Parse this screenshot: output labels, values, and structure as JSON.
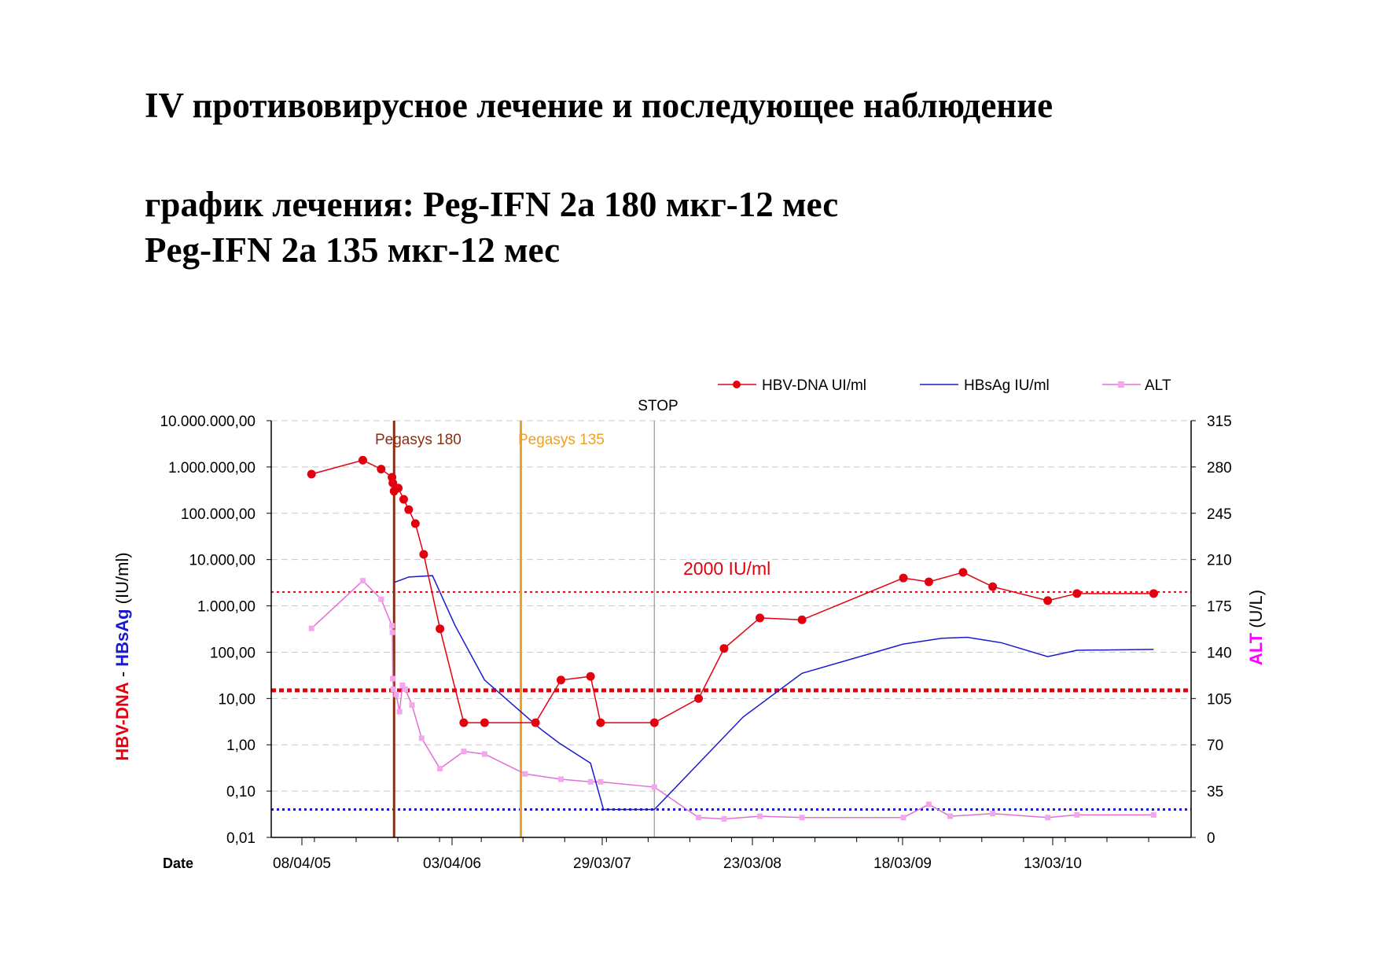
{
  "slide": {
    "title": "IV противовирусное лечение и последующее наблюдение",
    "subtitle_line1": "график лечения: Peg-IFN 2a 180 мкг-12 мес",
    "subtitle_line2": "Peg-IFN 2a 135 мкг-12 мес"
  },
  "chart_data": {
    "type": "line",
    "x_axis_label": "Date",
    "x_ticks": [
      "08/04/05",
      "03/04/06",
      "29/03/07",
      "23/03/08",
      "18/03/09",
      "13/03/10"
    ],
    "y_left": {
      "label_parts": [
        "HBV-DNA",
        " - ",
        "HBsAg",
        " (IU/ml)"
      ],
      "scale": "log",
      "range": [
        0.01,
        10000000
      ],
      "tick_labels": [
        "0,01",
        "0,10",
        "1,00",
        "10,00",
        "100,00",
        "1.000,00",
        "10.000,00",
        "100.000,00",
        "1.000.000,00",
        "10.000.000,00"
      ]
    },
    "y_right": {
      "label_parts": [
        "ALT",
        " (U/L)"
      ],
      "scale": "linear",
      "range": [
        0,
        315
      ],
      "tick_labels": [
        "0",
        "35",
        "70",
        "105",
        "140",
        "175",
        "210",
        "245",
        "280",
        "315"
      ]
    },
    "grid": "horizontal dashed",
    "legend_position": "top-right",
    "colors": {
      "hbv_dna": "#e3000f",
      "hbsag": "#1a1acc",
      "alt": "#e070d8",
      "alt_marker": "#f4a6ec",
      "pegasys180": "#8b2d10",
      "pegasys135": "#f0a020",
      "stop": "#a8a8a8",
      "label_magenta": "#ff00ff"
    },
    "annotations": {
      "pegasys180": "Pegasys 180",
      "pegasys135": "Pegasys 135",
      "stop": "STOP",
      "threshold_label": "2000 IU/ml"
    },
    "reference_lines": [
      {
        "value": 2000,
        "axis": "left",
        "style": "dotted"
      },
      {
        "value": 15,
        "axis": "left",
        "style": "thick dotted"
      },
      {
        "value": 0.04,
        "axis": "left",
        "style": "dotted"
      }
    ],
    "vertical_markers": {
      "pegasys180": "2005-11-15",
      "pegasys135": "2006-09-15",
      "stop": "2007-08-01"
    },
    "series": [
      {
        "name": "HBV-DNA UI/ml",
        "axis": "left",
        "marker": "circle",
        "points": [
          {
            "x": "2005-05-01",
            "y": 700000
          },
          {
            "x": "2005-09-01",
            "y": 1400000
          },
          {
            "x": "2005-10-15",
            "y": 900000
          },
          {
            "x": "2005-11-10",
            "y": 600000
          },
          {
            "x": "2005-11-12",
            "y": 450000
          },
          {
            "x": "2005-11-15",
            "y": 300000
          },
          {
            "x": "2005-11-25",
            "y": 350000
          },
          {
            "x": "2005-12-08",
            "y": 200000
          },
          {
            "x": "2005-12-20",
            "y": 120000
          },
          {
            "x": "2006-01-05",
            "y": 60000
          },
          {
            "x": "2006-01-25",
            "y": 13000
          },
          {
            "x": "2006-03-05",
            "y": 320
          },
          {
            "x": "2006-05-01",
            "y": 3
          },
          {
            "x": "2006-06-20",
            "y": 3
          },
          {
            "x": "2006-10-20",
            "y": 3
          },
          {
            "x": "2006-12-20",
            "y": 25
          },
          {
            "x": "2007-03-01",
            "y": 30
          },
          {
            "x": "2007-03-25",
            "y": 3
          },
          {
            "x": "2007-08-01",
            "y": 3
          },
          {
            "x": "2007-11-15",
            "y": 10
          },
          {
            "x": "2008-01-15",
            "y": 120
          },
          {
            "x": "2008-04-10",
            "y": 550
          },
          {
            "x": "2008-07-20",
            "y": 500
          },
          {
            "x": "2009-03-20",
            "y": 4000
          },
          {
            "x": "2009-05-20",
            "y": 3300
          },
          {
            "x": "2009-08-10",
            "y": 5300
          },
          {
            "x": "2009-10-20",
            "y": 2600
          },
          {
            "x": "2010-03-01",
            "y": 1300
          },
          {
            "x": "2010-05-10",
            "y": 1850
          },
          {
            "x": "2010-11-10",
            "y": 1850
          }
        ]
      },
      {
        "name": "HBsAg IU/ml",
        "axis": "left",
        "marker": "none",
        "points": [
          {
            "x": "2005-11-15",
            "y": 3200
          },
          {
            "x": "2005-12-20",
            "y": 4200
          },
          {
            "x": "2006-02-15",
            "y": 4500
          },
          {
            "x": "2006-04-10",
            "y": 380
          },
          {
            "x": "2006-06-20",
            "y": 25
          },
          {
            "x": "2006-11-01",
            "y": 2.2
          },
          {
            "x": "2006-12-15",
            "y": 1.1
          },
          {
            "x": "2007-03-01",
            "y": 0.4
          },
          {
            "x": "2007-04-01",
            "y": 0.04
          },
          {
            "x": "2007-08-01",
            "y": 0.04
          },
          {
            "x": "2008-03-01",
            "y": 4
          },
          {
            "x": "2008-07-20",
            "y": 35
          },
          {
            "x": "2009-03-20",
            "y": 150
          },
          {
            "x": "2009-06-20",
            "y": 200
          },
          {
            "x": "2009-08-20",
            "y": 210
          },
          {
            "x": "2009-11-10",
            "y": 160
          },
          {
            "x": "2010-03-01",
            "y": 80
          },
          {
            "x": "2010-05-10",
            "y": 110
          },
          {
            "x": "2010-11-10",
            "y": 115
          }
        ]
      },
      {
        "name": "ALT",
        "axis": "right",
        "marker": "square",
        "points": [
          {
            "x": "2005-05-01",
            "y": 158
          },
          {
            "x": "2005-09-01",
            "y": 194
          },
          {
            "x": "2005-10-15",
            "y": 180
          },
          {
            "x": "2005-11-10",
            "y": 160
          },
          {
            "x": "2005-11-11",
            "y": 155
          },
          {
            "x": "2005-11-12",
            "y": 120
          },
          {
            "x": "2005-11-13",
            "y": 112
          },
          {
            "x": "2005-11-20",
            "y": 108
          },
          {
            "x": "2005-11-28",
            "y": 95
          },
          {
            "x": "2005-12-05",
            "y": 115
          },
          {
            "x": "2005-12-12",
            "y": 112
          },
          {
            "x": "2005-12-28",
            "y": 100
          },
          {
            "x": "2006-01-20",
            "y": 75
          },
          {
            "x": "2006-03-05",
            "y": 52
          },
          {
            "x": "2006-05-01",
            "y": 65
          },
          {
            "x": "2006-06-20",
            "y": 63
          },
          {
            "x": "2006-09-25",
            "y": 48
          },
          {
            "x": "2006-12-20",
            "y": 44
          },
          {
            "x": "2007-03-01",
            "y": 42
          },
          {
            "x": "2007-03-25",
            "y": 42
          },
          {
            "x": "2007-08-01",
            "y": 38
          },
          {
            "x": "2007-11-15",
            "y": 15
          },
          {
            "x": "2008-01-15",
            "y": 14
          },
          {
            "x": "2008-04-10",
            "y": 16
          },
          {
            "x": "2008-07-20",
            "y": 15
          },
          {
            "x": "2009-03-20",
            "y": 15
          },
          {
            "x": "2009-05-20",
            "y": 25
          },
          {
            "x": "2009-07-10",
            "y": 16
          },
          {
            "x": "2009-10-20",
            "y": 18
          },
          {
            "x": "2010-03-01",
            "y": 15
          },
          {
            "x": "2010-05-10",
            "y": 17
          },
          {
            "x": "2010-11-10",
            "y": 17
          }
        ]
      }
    ]
  }
}
